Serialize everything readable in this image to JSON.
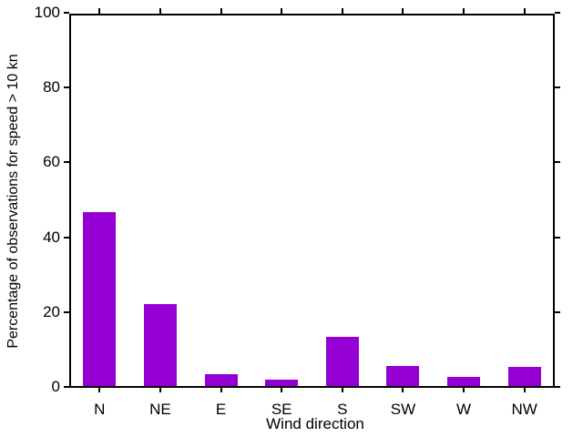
{
  "chart_data": {
    "type": "bar",
    "categories": [
      "N",
      "NE",
      "E",
      "SE",
      "S",
      "SW",
      "W",
      "NW"
    ],
    "values": [
      46.5,
      21.8,
      3.1,
      1.8,
      13.2,
      5.3,
      2.4,
      5.1
    ],
    "title": "",
    "xlabel": "Wind direction",
    "ylabel": "Percentage of observations for speed > 10 kn",
    "ylim": [
      0,
      100
    ],
    "yticks": [
      0,
      20,
      40,
      60,
      80,
      100
    ],
    "bar_color": "#9400d3",
    "axis_color": "#000000",
    "background": "#ffffff",
    "grid": false,
    "legend": "none",
    "tick_style": "outward, mirrored on top and right borders"
  }
}
